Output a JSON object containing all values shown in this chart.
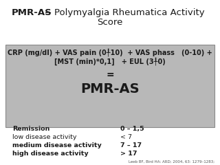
{
  "title_bold": "PMR-AS",
  "title_rest": " -- Polymyalgia Rheumatica Activity",
  "title_line2": "Score",
  "box_bg": "#b8b8b8",
  "box_line1": "CRP (mg/dl) + VAS pain (0╀10)  + VAS phass   (0-10) +",
  "box_line2": "[MST (min)*0,1]   + EUL (3╀0)",
  "box_eq": "=",
  "box_pmras": "PMR-AS",
  "row1_label": "Remission",
  "row1_val": "0 – 1,5",
  "row2_label": "low disease activity",
  "row2_val": "< 7",
  "row3_label": "medium disease activity",
  "row3_val": "7 – 17",
  "row4_label": "high disease activity",
  "row4_val": "> 17",
  "citation": "Leeb BF, Bird HA: ARD; 2004, 63: 1279–1283;",
  "bg_color": "#ffffff",
  "text_color": "#1a1a1a"
}
